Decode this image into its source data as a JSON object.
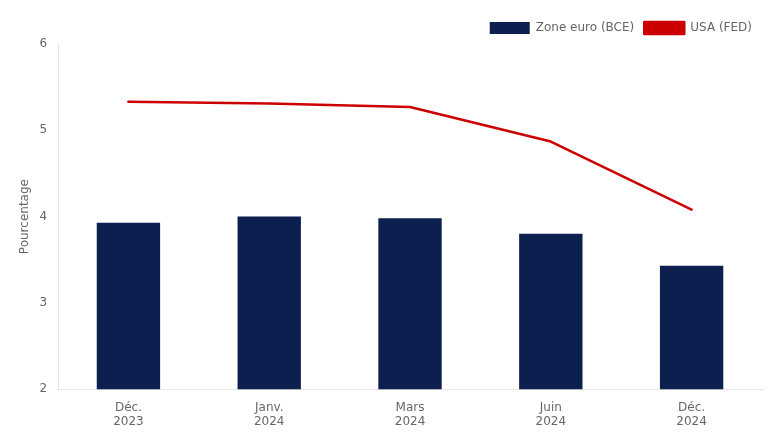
{
  "chart_data": {
    "type": "bar",
    "ylabel": "Pourcentage",
    "categories": [
      "Déc.\n2023",
      "Janv.\n2024",
      "Mars\n2024",
      "Juin\n2024",
      "Déc.\n2024"
    ],
    "series": [
      {
        "name": "Zone euro (BCE)",
        "type": "bar",
        "color": "#0d1f4e",
        "values": [
          3.93,
          4.0,
          3.98,
          3.8,
          3.43
        ]
      },
      {
        "name": "USA (FED)",
        "type": "line",
        "color": "#cc0000",
        "values": [
          5.33,
          5.31,
          5.27,
          4.87,
          4.08
        ]
      }
    ],
    "ylim": [
      2,
      6
    ],
    "yticks": [
      2,
      3,
      4,
      5,
      6
    ],
    "grid": false,
    "legend": "upper right"
  }
}
